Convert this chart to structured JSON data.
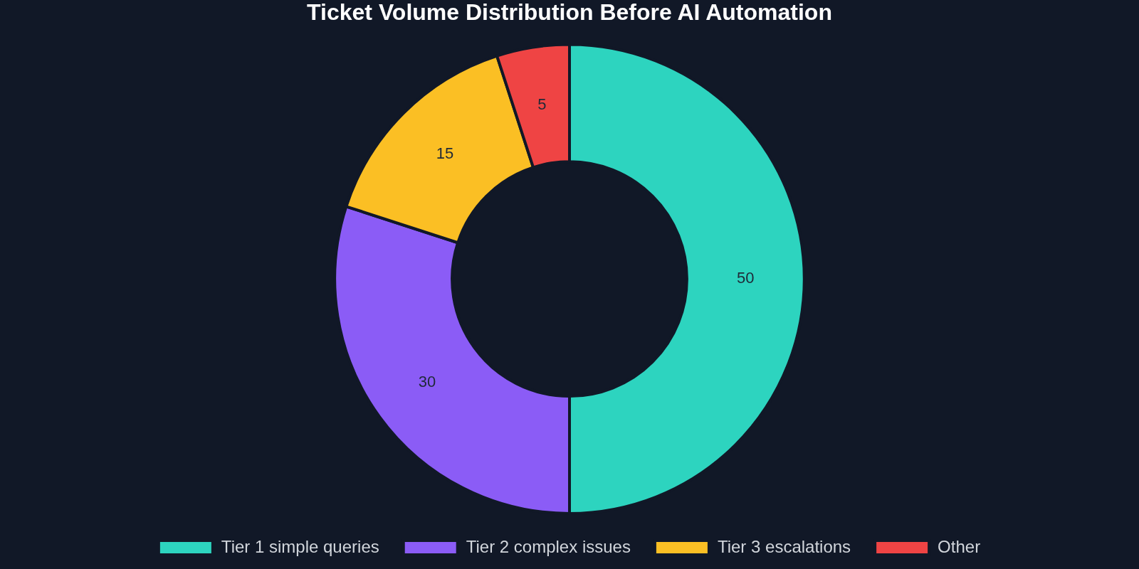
{
  "chart_data": {
    "type": "donut",
    "title": "Ticket Volume Distribution Before AI Automation",
    "categories": [
      "Tier 1 simple queries",
      "Tier 2 complex issues",
      "Tier 3 escalations",
      "Other"
    ],
    "values": [
      50,
      30,
      15,
      5
    ],
    "colors": [
      "#2dd4bf",
      "#8b5cf6",
      "#fbbf24",
      "#ef4444"
    ],
    "data_labels": true,
    "legend": "bottom"
  }
}
